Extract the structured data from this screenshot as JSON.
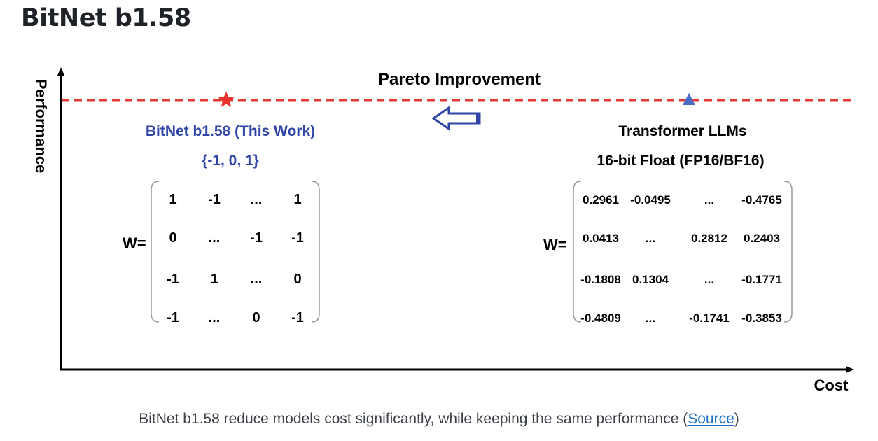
{
  "page": {
    "title": "BitNet b1.58",
    "caption_text": "BitNet b1.58 reduce models cost significantly, while keeping the same performance (",
    "caption_link": "Source",
    "caption_close": ")"
  },
  "diagram": {
    "y_axis_label": "Performance",
    "x_axis_label": "Cost",
    "pareto_label": "Pareto Improvement",
    "colors": {
      "bitnet": "#2f46a8",
      "star": "#e8322b",
      "dash": "#e03a33",
      "triangle": "#4a6ac8",
      "text": "#000000"
    },
    "left": {
      "title": "BitNet b1.58 (This Work)",
      "values": "{-1, 0, 1}",
      "w_label": "W=",
      "matrix": [
        [
          "1",
          "-1",
          "...",
          "1"
        ],
        [
          "0",
          "...",
          "-1",
          "-1"
        ],
        [
          "-1",
          "1",
          "...",
          "0"
        ],
        [
          "-1",
          "...",
          "0",
          "-1"
        ]
      ]
    },
    "right": {
      "title": "Transformer LLMs",
      "subtitle": "16-bit Float (FP16/BF16)",
      "w_label": "W=",
      "matrix": [
        [
          "0.2961",
          "-0.0495",
          "...",
          "-0.4765"
        ],
        [
          "0.0413",
          "...",
          "0.2812",
          "0.2403"
        ],
        [
          "-0.1808",
          "0.1304",
          "...",
          "-0.1771"
        ],
        [
          "-0.4809",
          "...",
          "-0.1741",
          "-0.3853"
        ]
      ]
    }
  }
}
